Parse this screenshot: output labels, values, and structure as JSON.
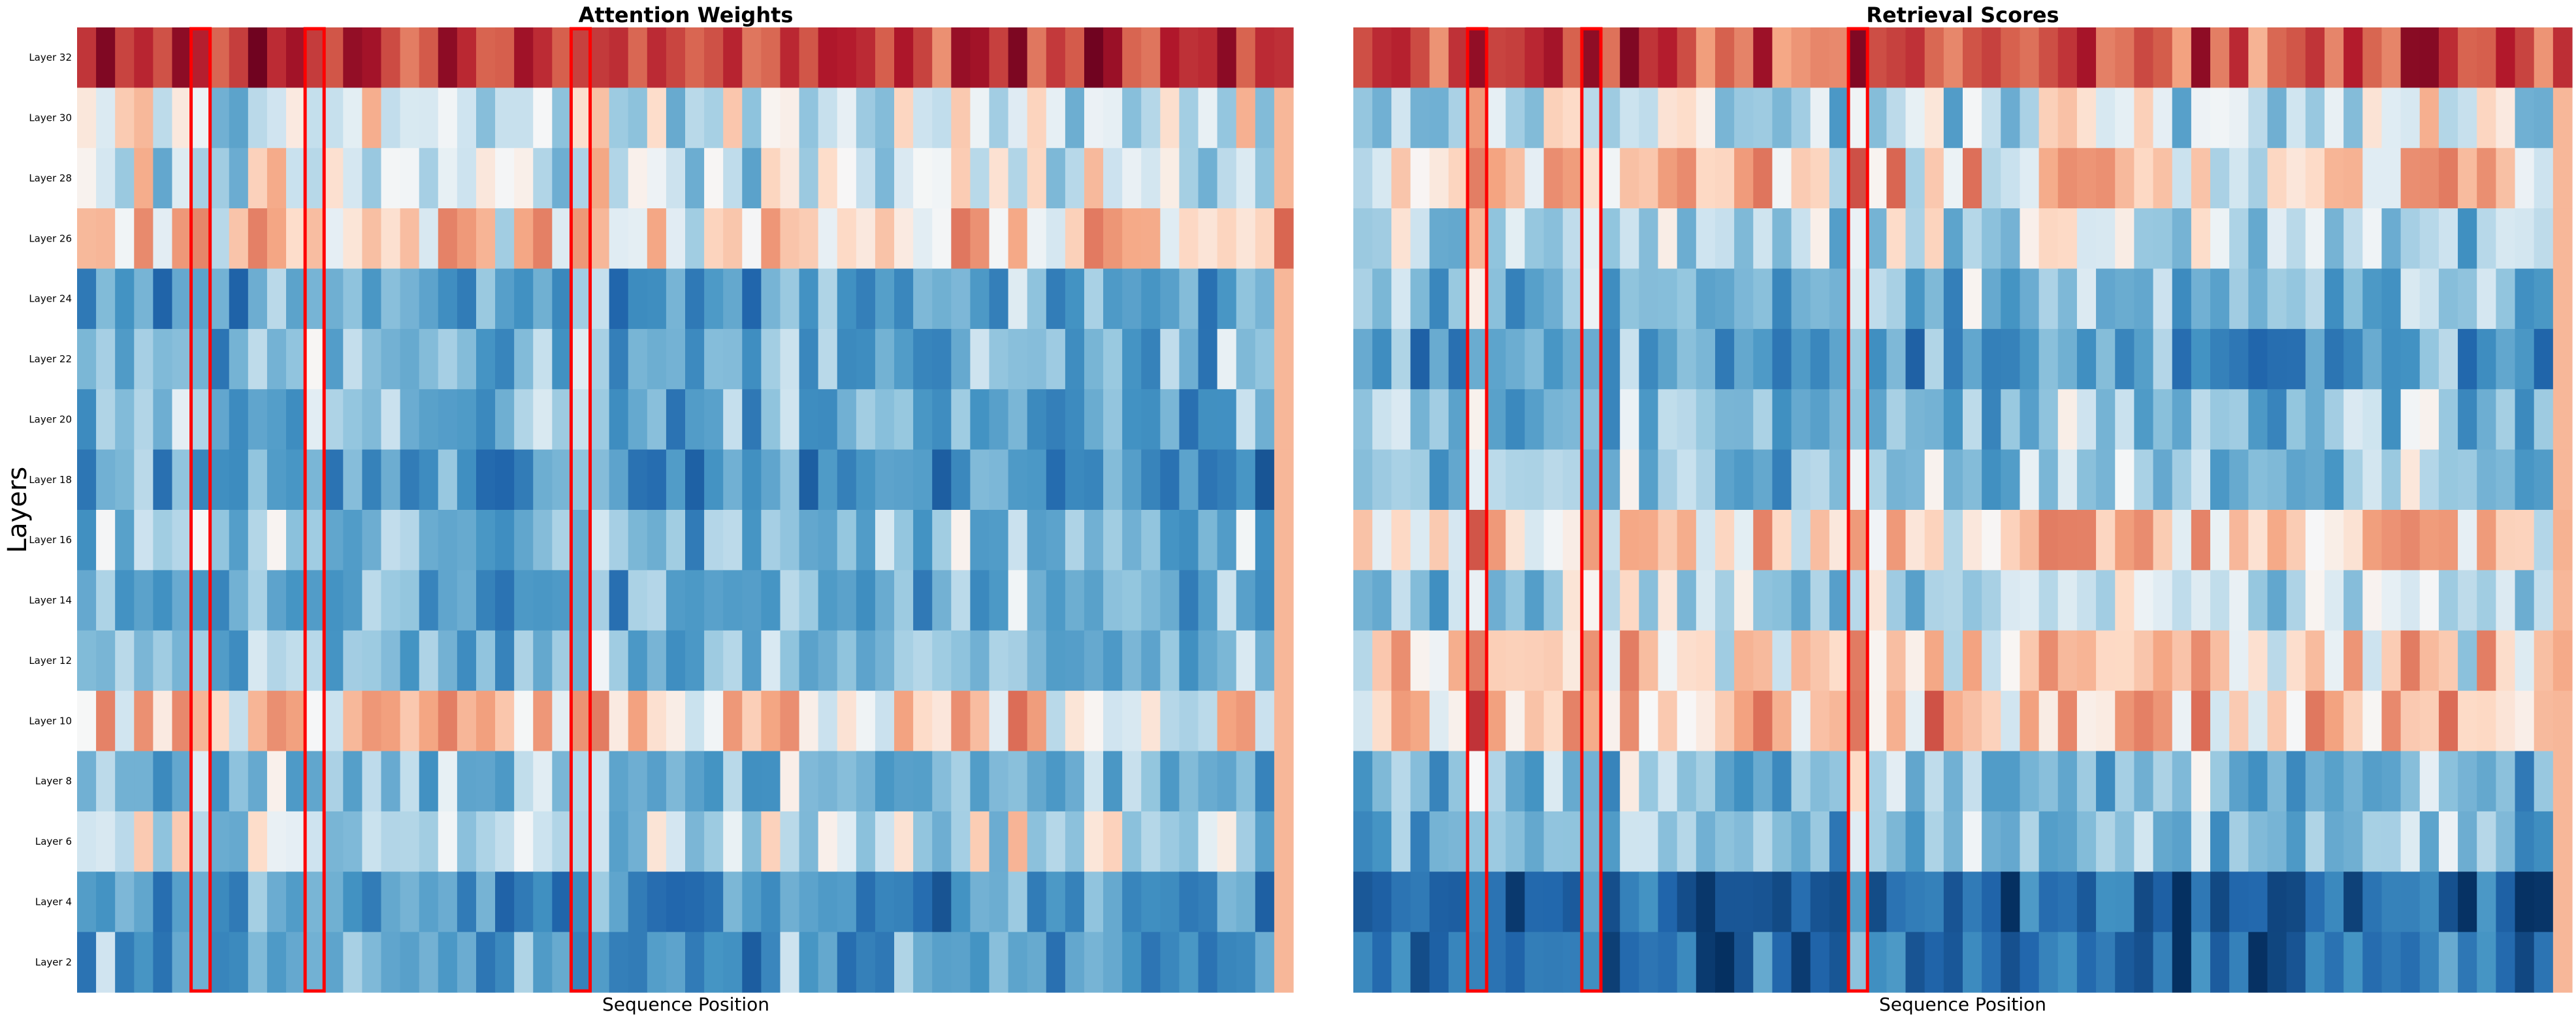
{
  "chart_data": [
    {
      "type": "heatmap",
      "title": "Attention Weights",
      "xlabel": "Sequence Position",
      "ylabel": "Layers",
      "y_tick_labels": [
        "Layer 32",
        "Layer 30",
        "Layer 28",
        "Layer 26",
        "Layer 24",
        "Layer 22",
        "Layer 20",
        "Layer 18",
        "Layer 16",
        "Layer 14",
        "Layer 12",
        "Layer 10",
        "Layer 8",
        "Layer 6",
        "Layer 4",
        "Layer 2"
      ],
      "num_positions": 64,
      "colormap": "RdBu_r",
      "value_range": [
        -1,
        1
      ],
      "row_profile": [
        0.62,
        -0.08,
        -0.1,
        0.12,
        -0.42,
        -0.32,
        -0.38,
        -0.5,
        -0.3,
        -0.38,
        -0.3,
        0.08,
        -0.32,
        -0.12,
        -0.52,
        -0.45
      ],
      "highlighted_columns": [
        6,
        12,
        26
      ],
      "highlight_color": "#ff0000",
      "seed": 7
    },
    {
      "type": "heatmap",
      "title": "Retrieval Scores",
      "xlabel": "Sequence Position",
      "ylabel": "",
      "y_tick_labels": [],
      "num_positions": 64,
      "colormap": "RdBu_r",
      "value_range": [
        -1,
        1
      ],
      "row_profile": [
        0.55,
        -0.12,
        0.12,
        -0.15,
        -0.32,
        -0.45,
        -0.3,
        -0.28,
        0.15,
        -0.18,
        0.08,
        0.18,
        -0.32,
        -0.35,
        -0.72,
        -0.7
      ],
      "highlighted_columns": [
        6,
        12,
        26
      ],
      "highlight_color": "#ff0000",
      "seed": 13
    }
  ]
}
